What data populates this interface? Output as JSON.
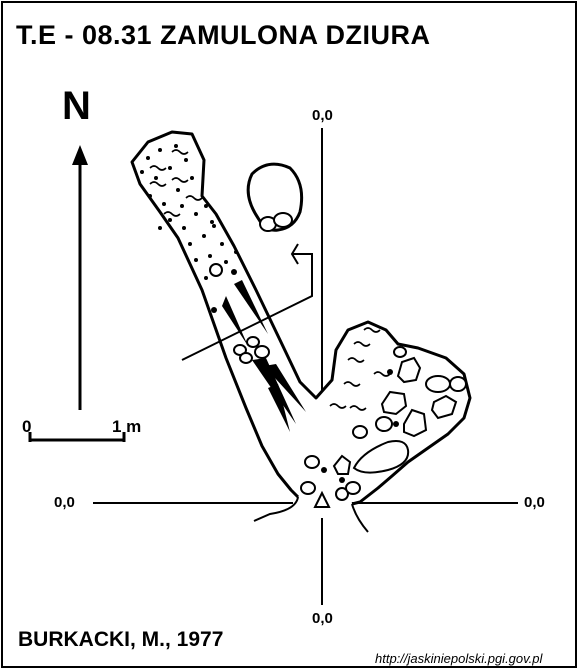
{
  "title": "T.E - 08.31  ZAMULONA DZIURA",
  "north": {
    "label": "N",
    "icon": "north-arrow-icon"
  },
  "scale_bar": {
    "start_label": "0",
    "end_label": "1 m"
  },
  "reference_marks": {
    "top": "0,0",
    "left": "0,0",
    "right": "0,0",
    "bottom": "0,0"
  },
  "author": "BURKACKI, M., 1977",
  "source": "http://jaskiniepolski.pgi.gov.pl",
  "symbols": [
    "entrance-triangle-icon",
    "boulder-icon",
    "sediment-dots-icon",
    "clay-wave-icon",
    "slope-arrow-icon",
    "profile-section-arrow-icon"
  ],
  "colors": {
    "ink": "#000000",
    "paper": "#ffffff"
  }
}
